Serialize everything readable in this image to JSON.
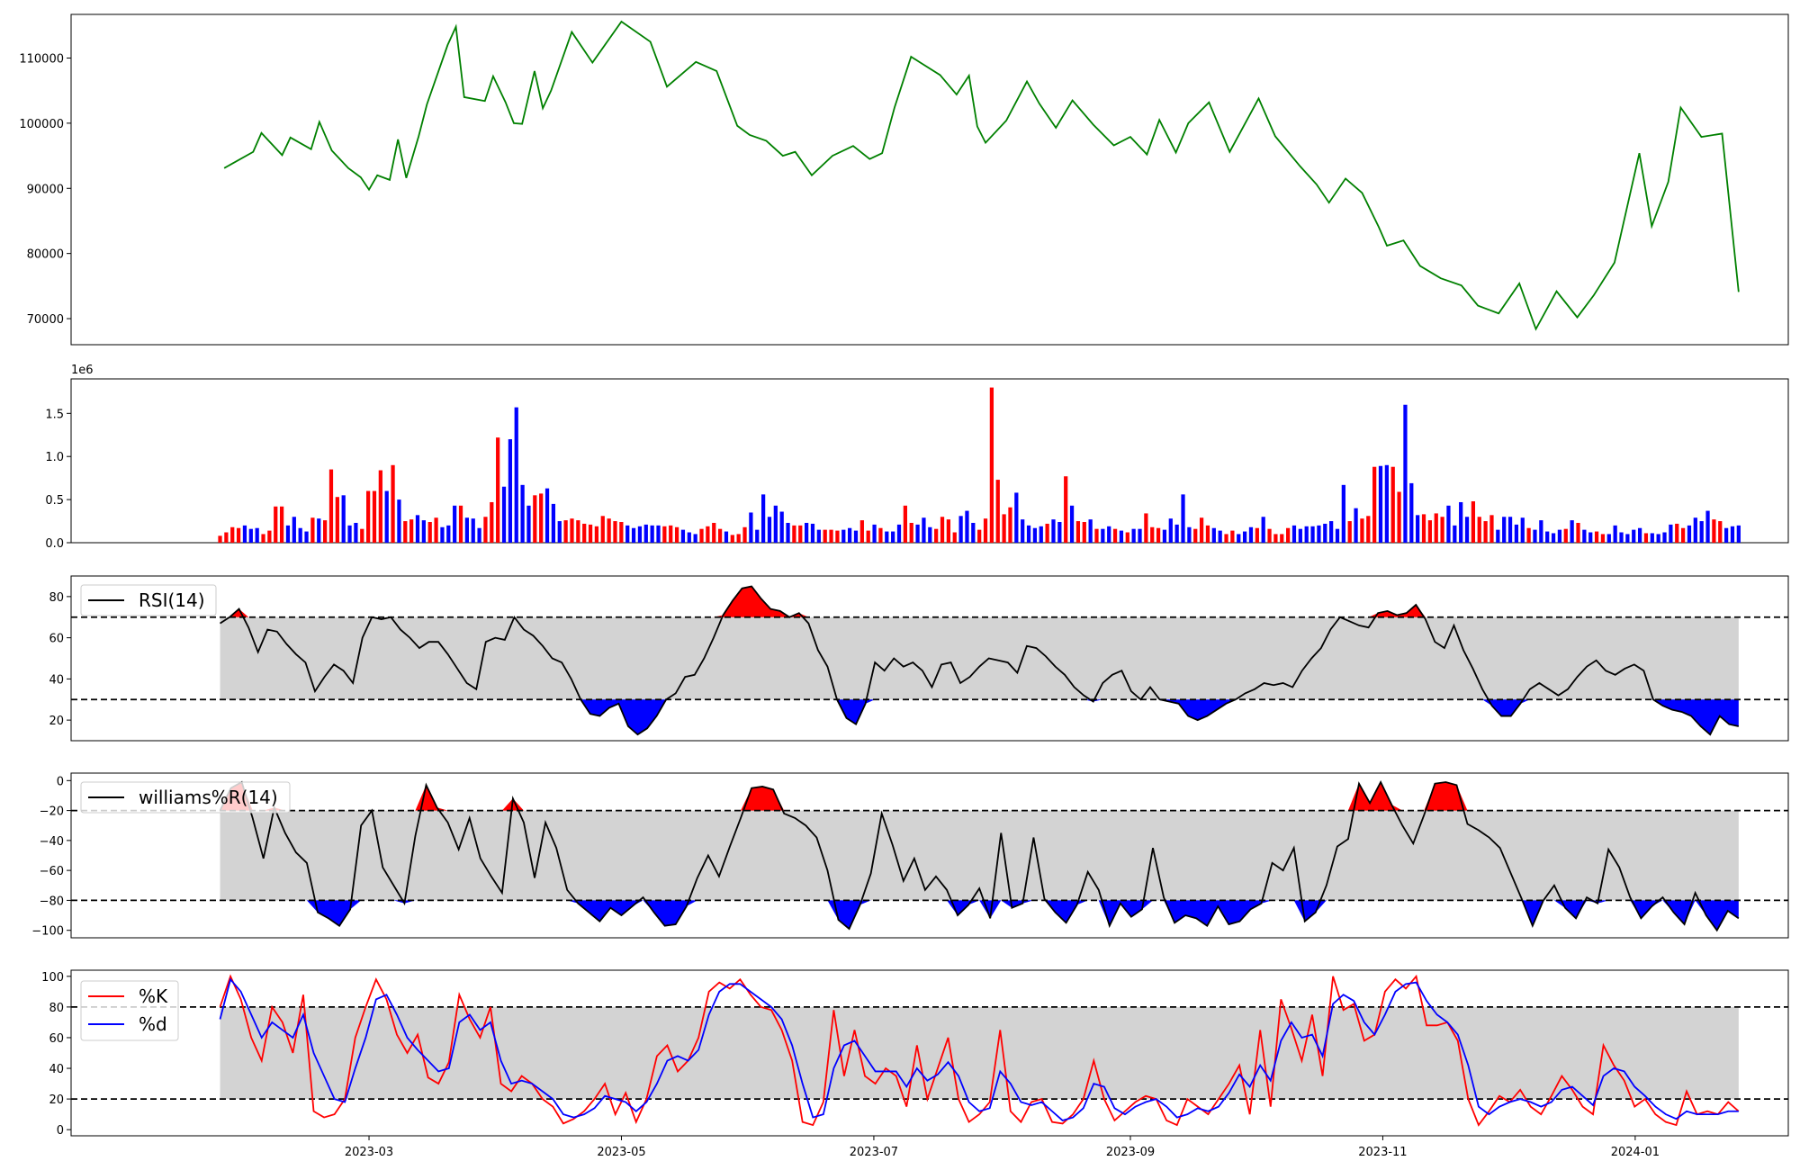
{
  "chart_data": [
    {
      "type": "line",
      "panel": "price",
      "series_color": "#008000",
      "ylim": [
        66000,
        116700
      ],
      "yticks": [
        70000,
        80000,
        90000,
        100000,
        110000
      ],
      "yticklabels": [
        "70000",
        "80000",
        "90000",
        "100000",
        "110000"
      ],
      "x": [
        "2023-01-25",
        "2023-02-01",
        "2023-02-03",
        "2023-02-08",
        "2023-02-10",
        "2023-02-15",
        "2023-02-17",
        "2023-02-20",
        "2023-02-24",
        "2023-02-27",
        "2023-03-01",
        "2023-03-03",
        "2023-03-06",
        "2023-03-08",
        "2023-03-10",
        "2023-03-13",
        "2023-03-15",
        "2023-03-20",
        "2023-03-22",
        "2023-03-24",
        "2023-03-29",
        "2023-03-31",
        "2023-04-03",
        "2023-04-05",
        "2023-04-07",
        "2023-04-10",
        "2023-04-12",
        "2023-04-14",
        "2023-04-19",
        "2023-04-24",
        "2023-05-01",
        "2023-05-08",
        "2023-05-12",
        "2023-05-19",
        "2023-05-24",
        "2023-05-29",
        "2023-06-01",
        "2023-06-05",
        "2023-06-09",
        "2023-06-12",
        "2023-06-16",
        "2023-06-21",
        "2023-06-26",
        "2023-06-30",
        "2023-07-03",
        "2023-07-06",
        "2023-07-10",
        "2023-07-12",
        "2023-07-17",
        "2023-07-21",
        "2023-07-24",
        "2023-07-26",
        "2023-07-28",
        "2023-08-02",
        "2023-08-07",
        "2023-08-10",
        "2023-08-14",
        "2023-08-18",
        "2023-08-23",
        "2023-08-28",
        "2023-09-01",
        "2023-09-05",
        "2023-09-08",
        "2023-09-12",
        "2023-09-15",
        "2023-09-20",
        "2023-09-25",
        "2023-10-02",
        "2023-10-06",
        "2023-10-12",
        "2023-10-16",
        "2023-10-19",
        "2023-10-23",
        "2023-10-27",
        "2023-10-31",
        "2023-11-02",
        "2023-11-06",
        "2023-11-10",
        "2023-11-15",
        "2023-11-20",
        "2023-11-24",
        "2023-11-29",
        "2023-12-04",
        "2023-12-08",
        "2023-12-13",
        "2023-12-18",
        "2023-12-22",
        "2023-12-27",
        "2024-01-02",
        "2024-01-05",
        "2024-01-09",
        "2024-01-12",
        "2024-01-17",
        "2024-01-22",
        "2024-01-26"
      ],
      "values": [
        93100,
        95600,
        98500,
        95100,
        97800,
        96000,
        100200,
        95800,
        93100,
        91700,
        89800,
        92000,
        91300,
        97500,
        91600,
        98000,
        102900,
        112000,
        114800,
        104000,
        103400,
        107200,
        103200,
        100000,
        99900,
        108000,
        102300,
        105000,
        114000,
        109300,
        115600,
        112500,
        105600,
        109400,
        108000,
        99600,
        98200,
        97300,
        95000,
        95600,
        92000,
        95000,
        96500,
        94500,
        95400,
        102400,
        110200,
        109400,
        107400,
        104400,
        107300,
        99500,
        97000,
        100400,
        106400,
        103000,
        99300,
        103500,
        99800,
        96600,
        97900,
        95200,
        100500,
        95500,
        100000,
        103200,
        95600,
        103800,
        98000,
        93400,
        90600,
        87800,
        91500,
        89300,
        84100,
        81200,
        82000,
        78100,
        76200,
        75100,
        72000,
        70800,
        75400,
        68400,
        74200,
        70200,
        73600,
        78600,
        95400,
        84200,
        91000,
        102400,
        97900,
        98400,
        74100
      ],
      "x_is_dates": true
    },
    {
      "type": "bar",
      "panel": "volume",
      "offset_label": "1e6",
      "ylim": [
        0,
        1.9
      ],
      "yticks": [
        0.0,
        0.5,
        1.0,
        1.5
      ],
      "yticklabels": [
        "0.0",
        "0.5",
        "1.0",
        "1.5"
      ],
      "up_color": "#ff0000",
      "down_color": "#0000ff",
      "values_millions": [
        0.08,
        0.12,
        0.18,
        0.17,
        0.2,
        0.16,
        0.17,
        0.1,
        0.14,
        0.42,
        0.42,
        0.2,
        0.3,
        0.17,
        0.13,
        0.29,
        0.28,
        0.26,
        0.85,
        0.53,
        0.55,
        0.2,
        0.23,
        0.16,
        0.6,
        0.6,
        0.84,
        0.6,
        0.9,
        0.5,
        0.25,
        0.27,
        0.32,
        0.26,
        0.24,
        0.29,
        0.18,
        0.2,
        0.43,
        0.43,
        0.29,
        0.28,
        0.17,
        0.3,
        0.47,
        1.22,
        0.65,
        1.2,
        1.57,
        0.67,
        0.43,
        0.55,
        0.57,
        0.63,
        0.45,
        0.25,
        0.26,
        0.28,
        0.26,
        0.22,
        0.21,
        0.19,
        0.31,
        0.28,
        0.25,
        0.24,
        0.2,
        0.17,
        0.19,
        0.21,
        0.2,
        0.2,
        0.19,
        0.2,
        0.18,
        0.15,
        0.12,
        0.1,
        0.16,
        0.19,
        0.23,
        0.16,
        0.13,
        0.09,
        0.1,
        0.18,
        0.35,
        0.15,
        0.56,
        0.3,
        0.43,
        0.36,
        0.23,
        0.2,
        0.2,
        0.23,
        0.22,
        0.15,
        0.15,
        0.15,
        0.14,
        0.15,
        0.17,
        0.14,
        0.26,
        0.14,
        0.21,
        0.17,
        0.13,
        0.13,
        0.21,
        0.43,
        0.23,
        0.21,
        0.29,
        0.18,
        0.16,
        0.3,
        0.27,
        0.12,
        0.31,
        0.37,
        0.23,
        0.15,
        0.28,
        1.8,
        0.73,
        0.33,
        0.41,
        0.58,
        0.27,
        0.2,
        0.17,
        0.19,
        0.22,
        0.27,
        0.24,
        0.77,
        0.43,
        0.25,
        0.24,
        0.27,
        0.16,
        0.16,
        0.19,
        0.16,
        0.14,
        0.12,
        0.16,
        0.16,
        0.34,
        0.18,
        0.17,
        0.15,
        0.28,
        0.21,
        0.56,
        0.18,
        0.16,
        0.29,
        0.2,
        0.17,
        0.14,
        0.1,
        0.14,
        0.1,
        0.13,
        0.18,
        0.17,
        0.3,
        0.16,
        0.1,
        0.1,
        0.17,
        0.2,
        0.16,
        0.19,
        0.19,
        0.2,
        0.22,
        0.25,
        0.16,
        0.67,
        0.25,
        0.4,
        0.28,
        0.31,
        0.88,
        0.89,
        0.9,
        0.88,
        0.59,
        1.6,
        0.69,
        0.32,
        0.33,
        0.26,
        0.34,
        0.3,
        0.43,
        0.2,
        0.47,
        0.3,
        0.48,
        0.3,
        0.25,
        0.32,
        0.15,
        0.3,
        0.3,
        0.21,
        0.29,
        0.17,
        0.15,
        0.26,
        0.13,
        0.11,
        0.15,
        0.16,
        0.26,
        0.23,
        0.15,
        0.12,
        0.13,
        0.1,
        0.1,
        0.2,
        0.12,
        0.1,
        0.15,
        0.17,
        0.11,
        0.11,
        0.1,
        0.12,
        0.21,
        0.22,
        0.17,
        0.2,
        0.29,
        0.25,
        0.37,
        0.27,
        0.25,
        0.17,
        0.19,
        0.2
      ],
      "colors": "ssrrbbbrrrrbbbbrbrrrbbbrrrrbrbrrbbrrbbbrbbbrrrbbbbbrrbbbrrrrrrrrrrbbbbbbrrrbbbrrrrbrrrbbbbbbbrrbbbrrrbbbrrbrbbbrrbbbrrrrbbbrrrrrrbbbbbrbbrbrrbrbbrbrbbrrrbbbbbrrrbbrrbbbrbrrrrbbbbbbbbbrbrrrbbrrbbbrrrrbbbbrrrrbbbbbrbbbbbrbrbbrrbbbbbbrbbbbrrbbbbrrbbbbbbr"
    },
    {
      "type": "line",
      "panel": "rsi",
      "legend": "RSI(14)",
      "ylim": [
        10,
        90
      ],
      "yticks": [
        20,
        40,
        60,
        80
      ],
      "yticklabels": [
        "20",
        "40",
        "60",
        "80"
      ],
      "bands": [
        30,
        70
      ],
      "values": [
        67,
        70,
        74,
        65,
        53,
        64,
        63,
        57,
        52,
        48,
        34,
        41,
        47,
        44,
        38,
        60,
        70,
        69,
        70,
        64,
        60,
        55,
        58,
        58,
        52,
        45,
        38,
        35,
        58,
        60,
        59,
        70,
        64,
        61,
        56,
        50,
        48,
        40,
        30,
        23,
        22,
        26,
        28,
        17,
        13,
        16,
        22,
        30,
        33,
        41,
        42,
        50,
        60,
        71,
        78,
        84,
        85,
        79,
        74,
        73,
        70,
        72,
        67,
        54,
        46,
        30,
        21,
        18,
        28,
        48,
        44,
        50,
        46,
        48,
        44,
        36,
        47,
        48,
        38,
        41,
        46,
        50,
        49,
        48,
        43,
        56,
        55,
        51,
        46,
        42,
        36,
        32,
        29,
        38,
        42,
        44,
        34,
        30,
        36,
        30,
        29,
        28,
        22,
        20,
        22,
        25,
        28,
        30,
        33,
        35,
        38,
        37,
        38,
        36,
        44,
        50,
        55,
        64,
        70,
        68,
        66,
        65,
        72,
        73,
        71,
        72,
        76,
        69,
        58,
        55,
        66,
        54,
        45,
        35,
        27,
        22,
        22,
        28,
        35,
        38,
        35,
        32,
        35,
        41,
        46,
        49,
        44,
        42,
        45,
        47,
        44,
        30,
        27,
        25,
        24,
        22,
        17,
        13,
        22,
        18,
        17
      ],
      "fill_up_color": "#ff0000",
      "fill_down_color": "#0000ff",
      "fill_mid_color": "#d3d3d3"
    },
    {
      "type": "line",
      "panel": "williams",
      "legend": "williams%R(14)",
      "ylim": [
        -105,
        5
      ],
      "yticks": [
        -100,
        -80,
        -60,
        -40,
        -20,
        0
      ],
      "yticklabels": [
        "−100",
        "−80",
        "−60",
        "−40",
        "−20",
        "0"
      ],
      "bands": [
        -80,
        -20
      ],
      "values": [
        -20,
        -5,
        -1,
        -25,
        -52,
        -18,
        -35,
        -48,
        -55,
        -88,
        -92,
        -97,
        -86,
        -30,
        -20,
        -58,
        -70,
        -82,
        -37,
        -3,
        -18,
        -28,
        -46,
        -25,
        -52,
        -64,
        -75,
        -12,
        -28,
        -65,
        -28,
        -45,
        -73,
        -82,
        -88,
        -94,
        -85,
        -90,
        -84,
        -78,
        -88,
        -97,
        -96,
        -84,
        -65,
        -50,
        -64,
        -44,
        -25,
        -5,
        -4,
        -6,
        -22,
        -25,
        -30,
        -38,
        -60,
        -93,
        -99,
        -83,
        -62,
        -22,
        -43,
        -67,
        -52,
        -73,
        -64,
        -73,
        -90,
        -83,
        -72,
        -92,
        -35,
        -85,
        -82,
        -38,
        -79,
        -88,
        -95,
        -83,
        -61,
        -73,
        -97,
        -82,
        -91,
        -86,
        -45,
        -78,
        -95,
        -90,
        -92,
        -97,
        -84,
        -96,
        -94,
        -86,
        -82,
        -55,
        -60,
        -45,
        -94,
        -88,
        -70,
        -44,
        -39,
        -2,
        -15,
        -1,
        -16,
        -30,
        -42,
        -23,
        -2,
        -1,
        -3,
        -29,
        -33,
        -38,
        -45,
        -62,
        -79,
        -97,
        -80,
        -70,
        -85,
        -92,
        -78,
        -82,
        -46,
        -58,
        -78,
        -92,
        -84,
        -78,
        -88,
        -96,
        -75,
        -90,
        -100,
        -87,
        -92
      ],
      "fill_up_color": "#ff0000",
      "fill_down_color": "#0000ff",
      "fill_mid_color": "#d3d3d3"
    },
    {
      "type": "line",
      "panel": "stochastic",
      "ylim": [
        -4,
        104
      ],
      "yticks": [
        0,
        20,
        40,
        60,
        80,
        100
      ],
      "yticklabels": [
        "0",
        "20",
        "40",
        "60",
        "80",
        "100"
      ],
      "bands": [
        20,
        80
      ],
      "fill_mid_color": "#d3d3d3",
      "series": [
        {
          "name": "%K",
          "color": "#ff0000",
          "values": [
            80,
            100,
            85,
            60,
            45,
            80,
            70,
            50,
            88,
            12,
            8,
            10,
            20,
            60,
            80,
            98,
            85,
            62,
            50,
            62,
            34,
            30,
            44,
            88,
            72,
            60,
            80,
            30,
            25,
            35,
            30,
            20,
            15,
            4,
            7,
            12,
            20,
            30,
            10,
            24,
            5,
            20,
            48,
            55,
            38,
            45,
            60,
            90,
            96,
            92,
            98,
            88,
            80,
            78,
            65,
            45,
            5,
            3,
            18,
            78,
            35,
            65,
            35,
            30,
            40,
            35,
            15,
            55,
            20,
            40,
            60,
            20,
            5,
            10,
            18,
            65,
            12,
            5,
            18,
            20,
            5,
            4,
            10,
            20,
            45,
            20,
            6,
            12,
            18,
            22,
            20,
            6,
            3,
            20,
            15,
            10,
            20,
            30,
            42,
            10,
            65,
            15,
            85,
            66,
            45,
            75,
            35,
            100,
            78,
            82,
            58,
            62,
            90,
            98,
            92,
            100,
            68,
            68,
            70,
            58,
            20,
            3,
            12,
            22,
            18,
            26,
            15,
            10,
            22,
            35,
            26,
            15,
            10,
            55,
            42,
            32,
            15,
            20,
            10,
            5,
            3,
            25,
            10,
            12,
            10,
            18,
            12
          ],
          "name_label": "%K"
        },
        {
          "name": "%d",
          "color": "#0000ff",
          "values": [
            72,
            98,
            90,
            75,
            60,
            70,
            65,
            60,
            75,
            50,
            35,
            20,
            18,
            40,
            60,
            85,
            88,
            75,
            60,
            52,
            45,
            38,
            40,
            70,
            75,
            65,
            70,
            45,
            30,
            32,
            30,
            25,
            20,
            10,
            8,
            10,
            14,
            22,
            20,
            18,
            12,
            18,
            30,
            45,
            48,
            45,
            52,
            75,
            90,
            95,
            95,
            90,
            85,
            80,
            72,
            55,
            30,
            8,
            10,
            40,
            55,
            58,
            48,
            38,
            38,
            38,
            28,
            40,
            32,
            36,
            44,
            35,
            18,
            12,
            14,
            38,
            30,
            18,
            16,
            18,
            12,
            6,
            8,
            14,
            30,
            28,
            14,
            10,
            15,
            18,
            20,
            15,
            8,
            10,
            14,
            12,
            15,
            24,
            36,
            28,
            42,
            32,
            58,
            70,
            60,
            62,
            48,
            82,
            88,
            84,
            70,
            62,
            75,
            90,
            95,
            96,
            84,
            75,
            70,
            62,
            42,
            15,
            10,
            15,
            18,
            20,
            18,
            15,
            18,
            26,
            28,
            22,
            16,
            35,
            40,
            38,
            28,
            22,
            15,
            10,
            7,
            12,
            10,
            10,
            10,
            12,
            12
          ],
          "name_label": "%d"
        }
      ]
    }
  ],
  "x_axis": {
    "start_date": "2023-01-01",
    "tick_labels": [
      "2023-03",
      "2023-05",
      "2023-07",
      "2023-09",
      "2023-11",
      "2024-01"
    ],
    "tick_dates": [
      "2023-03-01",
      "2023-05-01",
      "2023-07-01",
      "2023-09-01",
      "2023-11-01",
      "2024-01-01"
    ]
  }
}
